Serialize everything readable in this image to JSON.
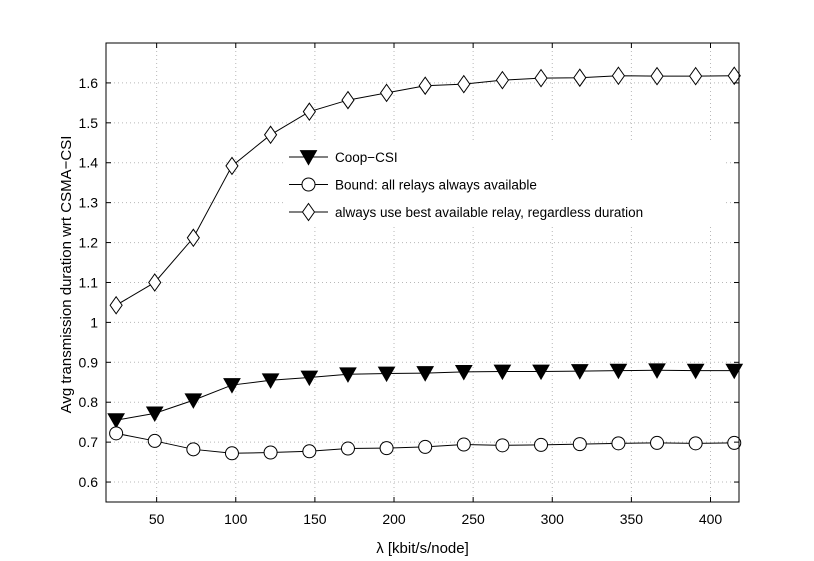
{
  "chart_data": {
    "type": "line",
    "title": "",
    "xlabel": "λ   [kbit/s/node]",
    "ylabel": "Avg transmission duration wrt CSMA−CSI",
    "xlim": [
      18,
      418
    ],
    "ylim": [
      0.55,
      1.7
    ],
    "xticks": [
      50,
      100,
      150,
      200,
      250,
      300,
      350,
      400
    ],
    "yticks": [
      0.6,
      0.7,
      0.8,
      0.9,
      1,
      1.1,
      1.2,
      1.3,
      1.4,
      1.5,
      1.6
    ],
    "grid": true,
    "legend_position": "center",
    "x": [
      24.4,
      48.8,
      73.2,
      97.6,
      122,
      146.5,
      170.9,
      195.3,
      219.7,
      244.1,
      268.5,
      292.9,
      317.4,
      341.8,
      366.2,
      390.6,
      415
    ],
    "series": [
      {
        "name": "Coop−CSI",
        "marker": "filled-triangle-down",
        "values": [
          0.755,
          0.772,
          0.805,
          0.843,
          0.855,
          0.862,
          0.87,
          0.872,
          0.873,
          0.876,
          0.877,
          0.877,
          0.878,
          0.879,
          0.88,
          0.879,
          0.879
        ]
      },
      {
        "name": "Bound: all relays always available",
        "marker": "open-circle",
        "values": [
          0.722,
          0.703,
          0.682,
          0.672,
          0.674,
          0.677,
          0.684,
          0.685,
          0.688,
          0.694,
          0.692,
          0.693,
          0.695,
          0.697,
          0.698,
          0.697,
          0.698
        ]
      },
      {
        "name": "always use best available relay, regardless duration",
        "marker": "open-diamond",
        "values": [
          1.043,
          1.1,
          1.212,
          1.392,
          1.47,
          1.528,
          1.557,
          1.575,
          1.593,
          1.597,
          1.607,
          1.612,
          1.613,
          1.618,
          1.617,
          1.617,
          1.618
        ]
      }
    ]
  }
}
